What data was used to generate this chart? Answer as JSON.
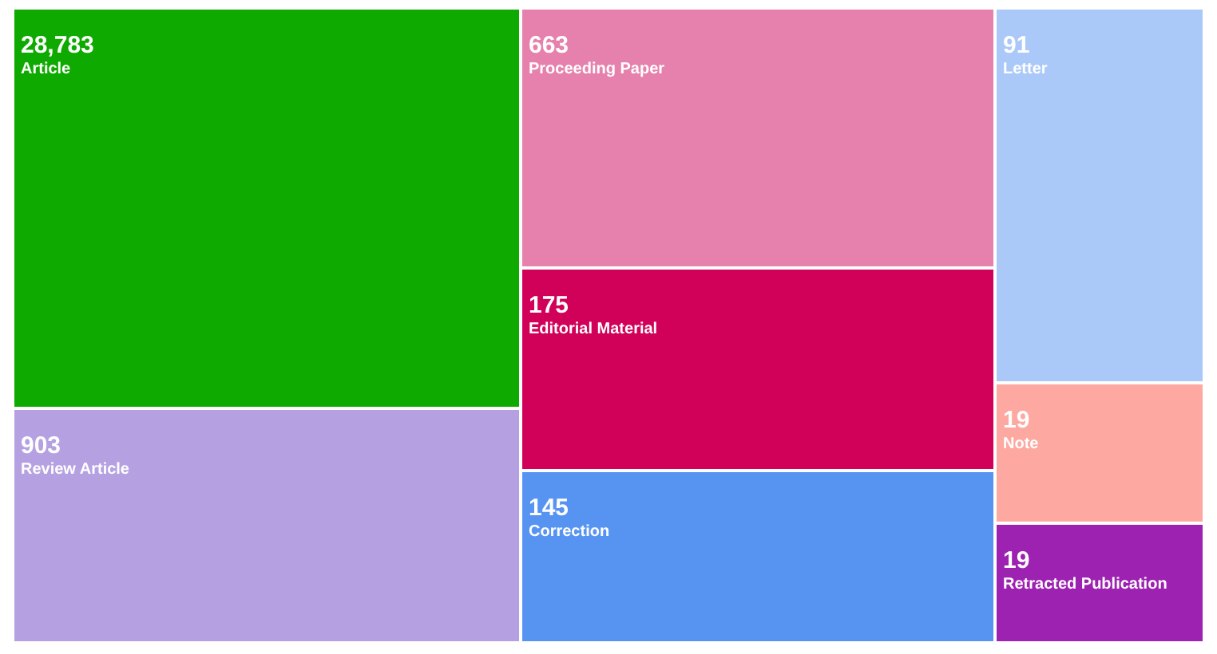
{
  "chart_data": {
    "type": "other",
    "categories": [
      "Article",
      "Review Article",
      "Proceeding Paper",
      "Editorial Material",
      "Correction",
      "Letter",
      "Note",
      "Retracted Publication"
    ],
    "values": [
      28783,
      903,
      663,
      175,
      145,
      91,
      19,
      19
    ],
    "value_labels": [
      "28,783",
      "903",
      "663",
      "175",
      "145",
      "91",
      "19",
      "19"
    ],
    "colors": [
      "#0eaa00",
      "#b5a1e1",
      "#e681ad",
      "#d10058",
      "#5794f2",
      "#abc9f8",
      "#fda8a0",
      "#9d22b1"
    ]
  }
}
